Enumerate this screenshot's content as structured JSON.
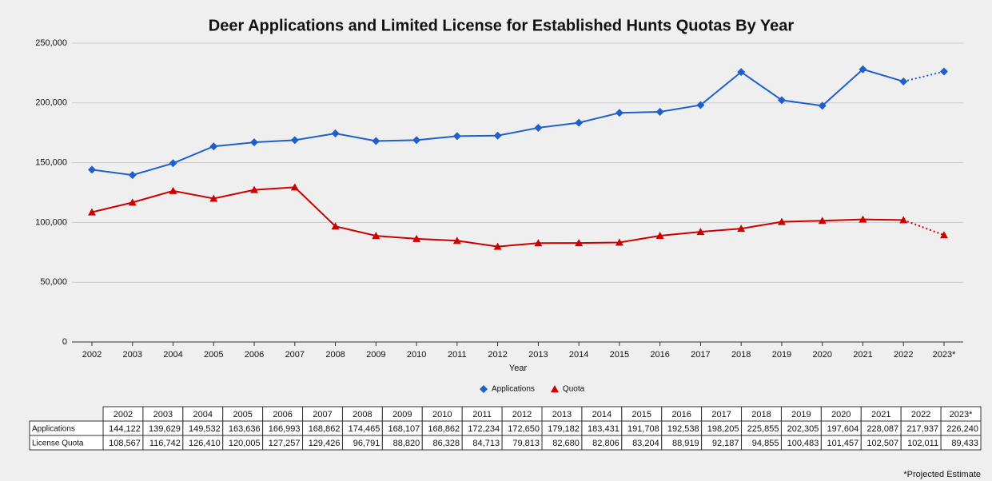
{
  "chart_data": {
    "type": "line",
    "title": "Deer Applications and Limited License for Established Hunts Quotas By Year",
    "x_label": "Year",
    "categories": [
      "2002",
      "2003",
      "2004",
      "2005",
      "2006",
      "2007",
      "2008",
      "2009",
      "2010",
      "2011",
      "2012",
      "2013",
      "2014",
      "2015",
      "2016",
      "2017",
      "2018",
      "2019",
      "2020",
      "2021",
      "2022",
      "2023*"
    ],
    "series": [
      {
        "name": "Applications",
        "row_label": "Applications",
        "color": "#1f5fcc",
        "marker": "diamond",
        "values": [
          144122,
          139629,
          149532,
          163636,
          166993,
          168862,
          174465,
          168107,
          168862,
          172234,
          172650,
          179182,
          183431,
          191708,
          192538,
          198205,
          225855,
          202305,
          197604,
          228087,
          217937,
          226240
        ],
        "value_labels": [
          "144,122",
          "139,629",
          "149,532",
          "163,636",
          "166,993",
          "168,862",
          "174,465",
          "168,107",
          "168,862",
          "172,234",
          "172,650",
          "179,182",
          "183,431",
          "191,708",
          "192,538",
          "198,205",
          "225,855",
          "202,305",
          "197,604",
          "228,087",
          "217,937",
          "226,240"
        ]
      },
      {
        "name": "Quota",
        "row_label": "License Quota",
        "color": "#cc0000",
        "marker": "triangle",
        "values": [
          108567,
          116742,
          126410,
          120005,
          127257,
          129426,
          96791,
          88820,
          86328,
          84713,
          79813,
          82680,
          82806,
          83204,
          88919,
          92187,
          94855,
          100483,
          101457,
          102507,
          102011,
          89433
        ],
        "value_labels": [
          "108,567",
          "116,742",
          "126,410",
          "120,005",
          "127,257",
          "129,426",
          "96,791",
          "88,820",
          "86,328",
          "84,713",
          "79,813",
          "82,680",
          "82,806",
          "83,204",
          "88,919",
          "92,187",
          "94,855",
          "100,483",
          "101,457",
          "102,507",
          "102,011",
          "89,433"
        ]
      }
    ],
    "ylim": [
      0,
      250000
    ],
    "yticks": [
      0,
      {
        "value": 50000,
        "label": "50,000"
      },
      {
        "value": 100000,
        "label": "100,000"
      },
      {
        "value": 150000,
        "label": "150,000"
      },
      {
        "value": 200000,
        "label": "200,000"
      },
      {
        "value": 250000,
        "label": "250,000"
      }
    ],
    "grid": true,
    "dashed_last_segment": true,
    "legend": "bottom",
    "footnote": "*Projected Estimate"
  }
}
